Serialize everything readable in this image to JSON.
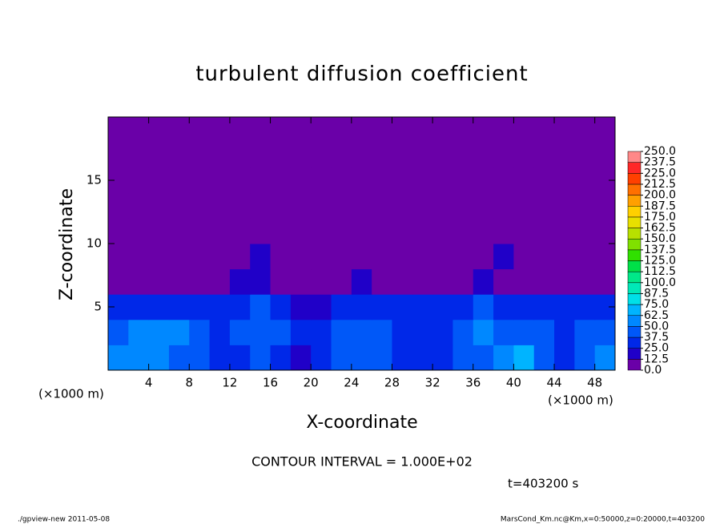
{
  "chart_data": {
    "type": "heatmap",
    "title": "turbulent diffusion coefficient",
    "xlabel": "X-coordinate",
    "ylabel": "Z-coordinate",
    "axis_unit": "(×1000 m)",
    "annotation": "CONTOUR INTERVAL = 1.000E+02",
    "time_label": "t=403200 s",
    "footer_left": "./gpview-new  2011-05-08",
    "footer_right": "MarsCond_Km.nc@Km,x=0:50000,z=0:20000,t=403200",
    "xlim": [
      0,
      50
    ],
    "ylim": [
      0,
      20
    ],
    "xticks": [
      4,
      8,
      12,
      16,
      20,
      24,
      28,
      32,
      36,
      40,
      44,
      48
    ],
    "yticks": [
      5,
      10,
      15
    ],
    "x": [
      1,
      3,
      5,
      7,
      9,
      11,
      13,
      15,
      17,
      19,
      21,
      23,
      25,
      27,
      29,
      31,
      33,
      35,
      37,
      39,
      41,
      43,
      45,
      47,
      49
    ],
    "z": [
      1,
      3,
      5,
      7,
      9,
      11,
      13,
      15,
      17,
      19
    ],
    "values": [
      [
        55,
        60,
        50,
        45,
        40,
        30,
        35,
        40,
        30,
        20,
        35,
        40,
        45,
        40,
        30,
        25,
        35,
        40,
        45,
        55,
        70,
        45,
        35,
        40,
        50
      ],
      [
        45,
        50,
        55,
        60,
        45,
        35,
        40,
        45,
        40,
        30,
        30,
        40,
        45,
        40,
        35,
        30,
        35,
        45,
        50,
        45,
        40,
        45,
        35,
        40,
        45
      ],
      [
        35,
        35,
        30,
        30,
        30,
        35,
        35,
        40,
        30,
        20,
        20,
        35,
        30,
        30,
        30,
        25,
        25,
        35,
        40,
        35,
        30,
        30,
        30,
        25,
        25
      ],
      [
        5,
        5,
        5,
        5,
        5,
        10,
        15,
        20,
        5,
        5,
        5,
        10,
        15,
        10,
        5,
        5,
        5,
        10,
        15,
        10,
        5,
        5,
        5,
        5,
        5
      ],
      [
        5,
        10,
        5,
        5,
        10,
        5,
        5,
        15,
        5,
        5,
        5,
        10,
        10,
        5,
        5,
        5,
        5,
        5,
        10,
        15,
        5,
        5,
        10,
        5,
        10
      ],
      [
        0,
        5,
        5,
        0,
        5,
        5,
        0,
        5,
        5,
        5,
        0,
        5,
        5,
        5,
        0,
        5,
        5,
        5,
        5,
        5,
        0,
        5,
        5,
        5,
        5
      ],
      [
        0,
        0,
        0,
        0,
        0,
        0,
        0,
        0,
        0,
        0,
        5,
        0,
        0,
        5,
        0,
        0,
        0,
        0,
        0,
        0,
        0,
        0,
        0,
        0,
        0
      ],
      [
        0,
        0,
        0,
        0,
        0,
        0,
        0,
        0,
        0,
        0,
        0,
        0,
        0,
        0,
        0,
        0,
        0,
        0,
        0,
        0,
        0,
        0,
        0,
        0,
        0
      ],
      [
        0,
        0,
        0,
        0,
        0,
        0,
        0,
        0,
        0,
        0,
        0,
        0,
        0,
        0,
        0,
        0,
        0,
        0,
        0,
        0,
        0,
        0,
        0,
        0,
        0
      ],
      [
        0,
        0,
        0,
        0,
        0,
        0,
        0,
        0,
        0,
        0,
        0,
        0,
        0,
        0,
        0,
        0,
        0,
        0,
        0,
        0,
        0,
        0,
        0,
        0,
        0
      ]
    ],
    "levels": [
      {
        "value": 0,
        "label": "0.0"
      },
      {
        "value": 12.5,
        "label": "12.5"
      },
      {
        "value": 25,
        "label": "25.0"
      },
      {
        "value": 37.5,
        "label": "37.5"
      },
      {
        "value": 50,
        "label": "50.0"
      },
      {
        "value": 62.5,
        "label": "62.5"
      },
      {
        "value": 75,
        "label": "75.0"
      },
      {
        "value": 87.5,
        "label": "87.5"
      },
      {
        "value": 100,
        "label": "100.0"
      },
      {
        "value": 112.5,
        "label": "112.5"
      },
      {
        "value": 125,
        "label": "125.0"
      },
      {
        "value": 137.5,
        "label": "137.5"
      },
      {
        "value": 150,
        "label": "150.0"
      },
      {
        "value": 162.5,
        "label": "162.5"
      },
      {
        "value": 175,
        "label": "175.0"
      },
      {
        "value": 187.5,
        "label": "187.5"
      },
      {
        "value": 200,
        "label": "200.0"
      },
      {
        "value": 212.5,
        "label": "212.5"
      },
      {
        "value": 225,
        "label": "225.0"
      },
      {
        "value": 237.5,
        "label": "237.5"
      },
      {
        "value": 250,
        "label": "250.0"
      }
    ],
    "colors": [
      "#6a00a8",
      "#2000c8",
      "#0028e8",
      "#0058f8",
      "#0088ff",
      "#00b4ff",
      "#00e0e8",
      "#00e8b8",
      "#00e888",
      "#00e048",
      "#30e000",
      "#80e000",
      "#b8e000",
      "#e8e000",
      "#ffd000",
      "#ffa000",
      "#ff7000",
      "#ff4000",
      "#ff2828",
      "#ff8888"
    ]
  }
}
